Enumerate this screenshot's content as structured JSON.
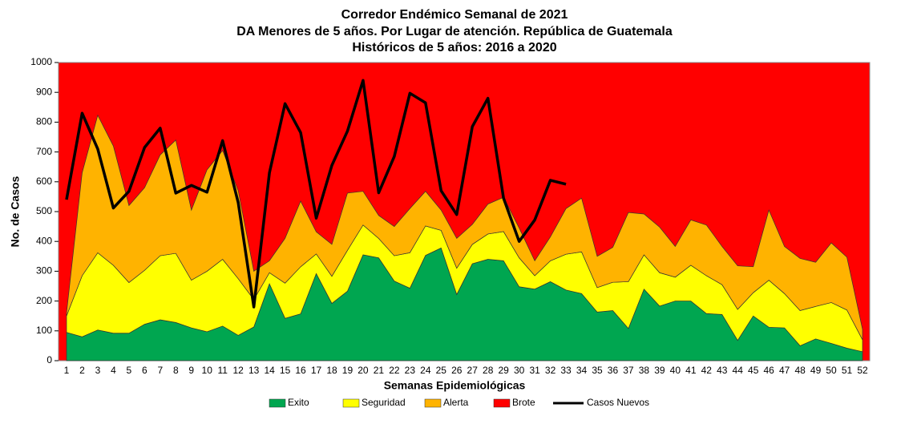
{
  "chart_data": {
    "type": "area",
    "title": [
      "Corredor Endémico Semanal de 2021",
      "DA Menores de 5 años. Por Lugar de atención.  República de Guatemala",
      "Históricos de 5 años: 2016 a 2020"
    ],
    "x_label": "Semanas Epidemiológicas",
    "y_label": "No. de Casos",
    "categories": [
      "1",
      "2",
      "3",
      "4",
      "5",
      "6",
      "7",
      "8",
      "9",
      "10",
      "11",
      "12",
      "13",
      "14",
      "15",
      "16",
      "17",
      "18",
      "19",
      "20",
      "21",
      "22",
      "23",
      "24",
      "25",
      "26",
      "27",
      "28",
      "29",
      "30",
      "31",
      "32",
      "33",
      "34",
      "35",
      "36",
      "37",
      "38",
      "39",
      "40",
      "41",
      "42",
      "43",
      "44",
      "45",
      "46",
      "47",
      "48",
      "49",
      "50",
      "51",
      "52"
    ],
    "ylim": [
      0,
      1000
    ],
    "yticks": [
      0,
      100,
      200,
      300,
      400,
      500,
      600,
      700,
      800,
      900,
      1000
    ],
    "stacked": true,
    "series": [
      {
        "name": "Exito",
        "color": "#00a650",
        "values": [
          95,
          80,
          103,
          92,
          92,
          122,
          137,
          128,
          110,
          97,
          116,
          85,
          113,
          258,
          142,
          157,
          292,
          192,
          233,
          355,
          345,
          267,
          243,
          353,
          378,
          222,
          325,
          340,
          335,
          248,
          240,
          265,
          237,
          225,
          163,
          168,
          108,
          240,
          183,
          200,
          200,
          158,
          155,
          68,
          150,
          112,
          110,
          50,
          73,
          58,
          42,
          30
        ]
      },
      {
        "name": "Seguridad",
        "color": "#ffff00",
        "values": [
          55,
          205,
          259,
          228,
          170,
          181,
          215,
          232,
          160,
          203,
          224,
          190,
          92,
          37,
          118,
          158,
          66,
          91,
          137,
          100,
          65,
          85,
          119,
          99,
          59,
          88,
          65,
          85,
          98,
          97,
          45,
          70,
          120,
          140,
          82,
          95,
          157,
          115,
          112,
          80,
          120,
          127,
          100,
          104,
          78,
          158,
          115,
          118,
          109,
          137,
          128,
          40
        ]
      },
      {
        "name": "Alerta",
        "color": "#ffb300",
        "values": [
          10,
          345,
          461,
          400,
          258,
          277,
          338,
          380,
          235,
          340,
          365,
          295,
          95,
          40,
          150,
          220,
          74,
          107,
          192,
          113,
          77,
          98,
          148,
          116,
          68,
          100,
          67,
          100,
          115,
          100,
          50,
          80,
          153,
          180,
          105,
          117,
          232,
          137,
          153,
          103,
          152,
          170,
          128,
          146,
          87,
          235,
          158,
          175,
          148,
          200,
          177,
          35
        ]
      },
      {
        "name": "Brote",
        "color": "#ff0000"
      },
      {
        "name": "Casos Nuevos",
        "type": "line",
        "color": "#000000",
        "values": [
          540,
          830,
          710,
          512,
          568,
          715,
          780,
          562,
          588,
          565,
          738,
          530,
          180,
          630,
          862,
          765,
          478,
          655,
          770,
          940,
          563,
          685,
          897,
          865,
          570,
          490,
          785,
          880,
          545,
          400,
          472,
          605,
          592,
          null,
          null,
          null,
          null,
          null,
          null,
          null,
          null,
          null,
          null,
          null,
          null,
          null,
          null,
          null,
          null,
          null,
          null,
          null
        ]
      }
    ]
  }
}
